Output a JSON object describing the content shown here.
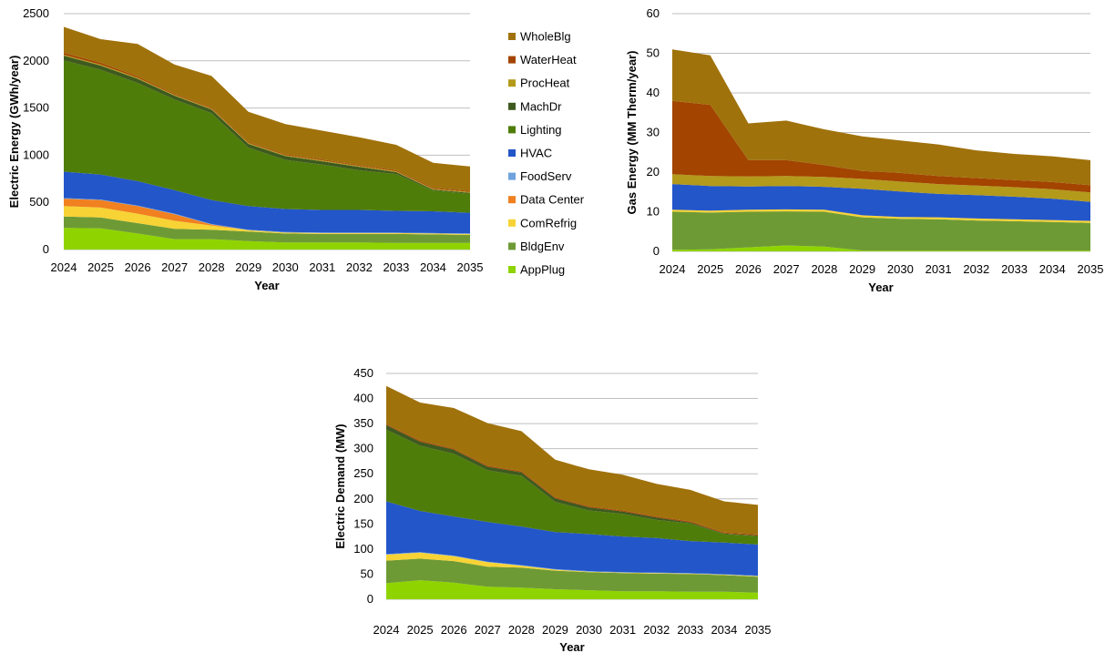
{
  "colors": {
    "WholeBlg": "#A0720C",
    "WaterHeat": "#A34400",
    "ProcHeat": "#B39A1B",
    "MachDr": "#3E5A1E",
    "Lighting": "#4F7D0A",
    "HVAC": "#2356C9",
    "FoodServ": "#6FA2DD",
    "Data Center": "#F08020",
    "ComRefrig": "#F7D335",
    "BldgEnv": "#6E9A35",
    "AppPlug": "#8FD400"
  },
  "legend": [
    "WholeBlg",
    "WaterHeat",
    "ProcHeat",
    "MachDr",
    "Lighting",
    "HVAC",
    "FoodServ",
    "Data Center",
    "ComRefrig",
    "BldgEnv",
    "AppPlug"
  ],
  "chart_data": [
    {
      "type": "area",
      "stacked": true,
      "id": "electric-energy",
      "xlabel": "Year",
      "ylabel": "Electric Energy (GWh/year)",
      "ylim": [
        0,
        2500
      ],
      "yticks": [
        0,
        500,
        1000,
        1500,
        2000,
        2500
      ],
      "x": [
        "2024",
        "2025",
        "2026",
        "2027",
        "2028",
        "2029",
        "2030",
        "2031",
        "2032",
        "2033",
        "2034",
        "2035"
      ],
      "grid": true,
      "series": [
        {
          "name": "AppPlug",
          "values": [
            230,
            225,
            170,
            110,
            110,
            90,
            75,
            75,
            75,
            70,
            70,
            70
          ]
        },
        {
          "name": "BldgEnv",
          "values": [
            120,
            115,
            110,
            110,
            100,
            100,
            95,
            90,
            90,
            95,
            90,
            85
          ]
        },
        {
          "name": "ComRefrig",
          "values": [
            110,
            105,
            100,
            85,
            45,
            15,
            10,
            10,
            10,
            10,
            10,
            10
          ]
        },
        {
          "name": "Data Center",
          "values": [
            80,
            80,
            80,
            70,
            10,
            0,
            0,
            0,
            0,
            0,
            0,
            0
          ]
        },
        {
          "name": "FoodServ",
          "values": [
            5,
            5,
            5,
            5,
            5,
            5,
            5,
            5,
            5,
            5,
            5,
            5
          ]
        },
        {
          "name": "HVAC",
          "values": [
            280,
            265,
            260,
            250,
            255,
            250,
            245,
            240,
            240,
            230,
            230,
            220
          ]
        },
        {
          "name": "Lighting",
          "values": [
            1180,
            1110,
            1040,
            960,
            920,
            620,
            520,
            480,
            420,
            390,
            220,
            200
          ]
        },
        {
          "name": "MachDr",
          "values": [
            50,
            45,
            45,
            40,
            40,
            40,
            40,
            35,
            35,
            20,
            10,
            10
          ]
        },
        {
          "name": "ProcHeat",
          "values": [
            10,
            10,
            10,
            10,
            10,
            10,
            10,
            10,
            10,
            10,
            10,
            10
          ]
        },
        {
          "name": "WaterHeat",
          "values": [
            20,
            20,
            15,
            10,
            10,
            10,
            10,
            10,
            10,
            10,
            10,
            10
          ]
        },
        {
          "name": "WholeBlg",
          "values": [
            275,
            250,
            345,
            310,
            335,
            320,
            320,
            305,
            295,
            270,
            265,
            260
          ]
        }
      ]
    },
    {
      "type": "area",
      "stacked": true,
      "id": "gas-energy",
      "xlabel": "Year",
      "ylabel": "Gas Energy (MM Therm/year)",
      "ylim": [
        0,
        60
      ],
      "yticks": [
        0,
        10,
        20,
        30,
        40,
        50,
        60
      ],
      "x": [
        "2024",
        "2025",
        "2026",
        "2027",
        "2028",
        "2029",
        "2030",
        "2031",
        "2032",
        "2033",
        "2034",
        "2035"
      ],
      "grid": true,
      "series": [
        {
          "name": "AppPlug",
          "values": [
            0.4,
            0.5,
            1.0,
            1.5,
            1.2,
            0.2,
            0.2,
            0.2,
            0.2,
            0.2,
            0.2,
            0.2
          ]
        },
        {
          "name": "BldgEnv",
          "values": [
            9.6,
            9.3,
            9.0,
            8.6,
            8.8,
            8.4,
            8.0,
            7.9,
            7.6,
            7.4,
            7.2,
            7.0
          ]
        },
        {
          "name": "ComRefrig",
          "values": [
            0.5,
            0.5,
            0.5,
            0.5,
            0.5,
            0.5,
            0.5,
            0.5,
            0.5,
            0.5,
            0.5,
            0.5
          ]
        },
        {
          "name": "Data Center",
          "values": [
            0,
            0,
            0,
            0,
            0,
            0,
            0,
            0,
            0,
            0,
            0,
            0
          ]
        },
        {
          "name": "FoodServ",
          "values": [
            0,
            0,
            0,
            0,
            0,
            0,
            0,
            0,
            0,
            0,
            0,
            0
          ]
        },
        {
          "name": "HVAC",
          "values": [
            6.5,
            6.2,
            5.9,
            5.9,
            5.8,
            6.7,
            6.4,
            5.9,
            5.9,
            5.7,
            5.4,
            4.8
          ]
        },
        {
          "name": "Lighting",
          "values": [
            0,
            0,
            0,
            0,
            0,
            0,
            0,
            0,
            0,
            0,
            0,
            0
          ]
        },
        {
          "name": "MachDr",
          "values": [
            0,
            0,
            0,
            0,
            0,
            0,
            0,
            0,
            0,
            0,
            0,
            0
          ]
        },
        {
          "name": "ProcHeat",
          "values": [
            2.5,
            2.5,
            2.5,
            2.5,
            2.5,
            2.5,
            2.5,
            2.5,
            2.4,
            2.4,
            2.4,
            2.4
          ]
        },
        {
          "name": "WaterHeat",
          "values": [
            18.5,
            18.0,
            4.1,
            4.0,
            3.0,
            2.0,
            2.2,
            2.0,
            1.9,
            1.8,
            1.8,
            1.8
          ]
        },
        {
          "name": "WholeBlg",
          "values": [
            13.0,
            12.5,
            9.3,
            10.0,
            9.0,
            8.7,
            8.2,
            8.0,
            7.0,
            6.6,
            6.5,
            6.3
          ]
        }
      ]
    },
    {
      "type": "area",
      "stacked": true,
      "id": "electric-demand",
      "xlabel": "Year",
      "ylabel": "Electric Demand (MW)",
      "ylim": [
        0,
        450
      ],
      "yticks": [
        0,
        50,
        100,
        150,
        200,
        250,
        300,
        350,
        400,
        450
      ],
      "x": [
        "2024",
        "2025",
        "2026",
        "2027",
        "2028",
        "2029",
        "2030",
        "2031",
        "2032",
        "2033",
        "2034",
        "2035"
      ],
      "grid": true,
      "series": [
        {
          "name": "AppPlug",
          "values": [
            32,
            38,
            33,
            25,
            23,
            20,
            18,
            16,
            16,
            15,
            15,
            13
          ]
        },
        {
          "name": "BldgEnv",
          "values": [
            45,
            43,
            43,
            40,
            40,
            37,
            36,
            36,
            35,
            35,
            33,
            32
          ]
        },
        {
          "name": "ComRefrig",
          "values": [
            12,
            12,
            10,
            9,
            4,
            2,
            1,
            1,
            1,
            1,
            1,
            1
          ]
        },
        {
          "name": "Data Center",
          "values": [
            0,
            0,
            0,
            0,
            0,
            0,
            0,
            0,
            0,
            0,
            0,
            0
          ]
        },
        {
          "name": "FoodServ",
          "values": [
            1,
            1,
            1,
            1,
            1,
            1,
            1,
            1,
            1,
            1,
            1,
            1
          ]
        },
        {
          "name": "HVAC",
          "values": [
            105,
            82,
            78,
            79,
            77,
            74,
            74,
            71,
            69,
            64,
            63,
            62
          ]
        },
        {
          "name": "Lighting",
          "values": [
            143,
            130,
            125,
            103,
            101,
            60,
            47,
            45,
            36,
            35,
            17,
            17
          ]
        },
        {
          "name": "MachDr",
          "values": [
            9,
            8,
            8,
            7,
            7,
            7,
            6,
            5,
            5,
            2,
            1,
            1
          ]
        },
        {
          "name": "ProcHeat",
          "values": [
            0,
            0,
            0,
            0,
            0,
            0,
            0,
            0,
            0,
            0,
            0,
            0
          ]
        },
        {
          "name": "WaterHeat",
          "values": [
            2,
            2,
            2,
            2,
            2,
            2,
            2,
            2,
            2,
            2,
            2,
            2
          ]
        },
        {
          "name": "WholeBlg",
          "values": [
            76,
            76,
            81,
            85,
            80,
            75,
            74,
            71,
            65,
            63,
            62,
            59
          ]
        }
      ]
    }
  ]
}
